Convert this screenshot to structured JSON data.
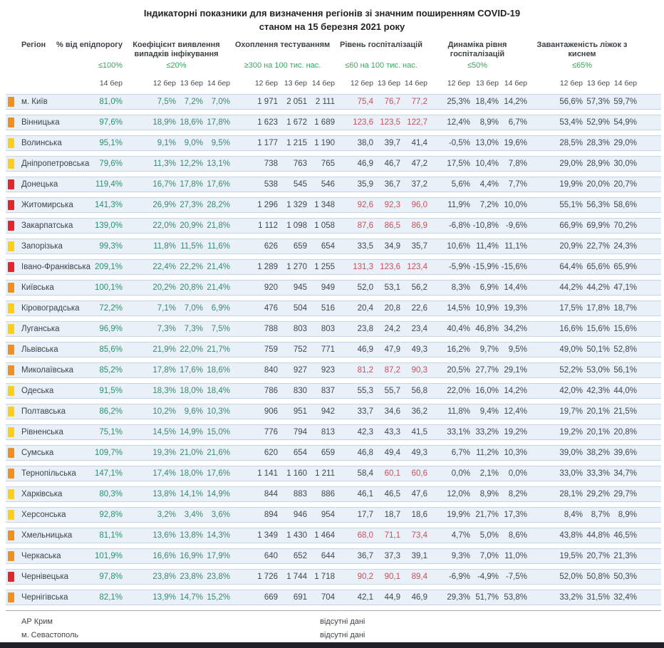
{
  "title": {
    "line1": "Індикаторні показники для визначення регіонів зі значним поширенням COVID-19",
    "line2": "станом на 15 березня 2021 року"
  },
  "columns": {
    "region": "Регіон",
    "groups": [
      {
        "id": "epid",
        "label": "% від епідпорогу",
        "threshold": "≤100%",
        "dates": [
          "14 бер"
        ]
      },
      {
        "id": "coef",
        "label": "Коефіцієнт виявлення випадків інфікування",
        "threshold": "≤20%",
        "dates": [
          "12 бер",
          "13 бер",
          "14 бер"
        ]
      },
      {
        "id": "test",
        "label": "Охоплення тестуванням",
        "threshold": "≥300 на 100 тис. нас.",
        "dates": [
          "12 бер",
          "13 бер",
          "14 бер"
        ]
      },
      {
        "id": "hosp",
        "label": "Рівень госпіталізацій",
        "threshold": "≤60 на 100 тис. нас.",
        "dates": [
          "12 бер",
          "13 бер",
          "14 бер"
        ]
      },
      {
        "id": "dyn",
        "label": "Динаміка рівня госпіталізацій",
        "threshold": "≤50%",
        "dates": [
          "12 бер",
          "13 бер",
          "14 бер"
        ]
      },
      {
        "id": "beds",
        "label": "Завантаженість ліжок з киснем",
        "threshold": "≤65%",
        "dates": [
          "12 бер",
          "13 бер",
          "14 бер"
        ]
      }
    ]
  },
  "rows": [
    {
      "region": "м. Київ",
      "marker": "orange",
      "epid": "81,0%",
      "coef": [
        "7,5%",
        "7,2%",
        "7,0%"
      ],
      "test": [
        "1 971",
        "2 051",
        "2 111"
      ],
      "hosp": [
        "75,4",
        "76,7",
        "77,2"
      ],
      "hosp_alert": [
        true,
        true,
        true
      ],
      "dyn": [
        "25,3%",
        "18,4%",
        "14,2%"
      ],
      "beds": [
        "56,6%",
        "57,3%",
        "59,7%"
      ]
    },
    {
      "region": "Вінницька",
      "marker": "orange",
      "epid": "97,6%",
      "coef": [
        "18,9%",
        "18,6%",
        "17,8%"
      ],
      "test": [
        "1 623",
        "1 672",
        "1 689"
      ],
      "hosp": [
        "123,6",
        "123,5",
        "122,7"
      ],
      "hosp_alert": [
        true,
        true,
        true
      ],
      "dyn": [
        "12,4%",
        "8,9%",
        "6,7%"
      ],
      "beds": [
        "53,4%",
        "52,9%",
        "54,9%"
      ]
    },
    {
      "region": "Волинська",
      "marker": "yellow",
      "epid": "95,1%",
      "coef": [
        "9,1%",
        "9,0%",
        "9,5%"
      ],
      "test": [
        "1 177",
        "1 215",
        "1 190"
      ],
      "hosp": [
        "38,0",
        "39,7",
        "41,4"
      ],
      "hosp_alert": [
        false,
        false,
        false
      ],
      "dyn": [
        "-0,5%",
        "13,0%",
        "19,6%"
      ],
      "beds": [
        "28,5%",
        "28,3%",
        "29,0%"
      ]
    },
    {
      "region": "Дніпропетровська",
      "marker": "yellow",
      "epid": "79,6%",
      "coef": [
        "11,3%",
        "12,2%",
        "13,1%"
      ],
      "test": [
        "738",
        "763",
        "765"
      ],
      "hosp": [
        "46,9",
        "46,7",
        "47,2"
      ],
      "hosp_alert": [
        false,
        false,
        false
      ],
      "dyn": [
        "17,5%",
        "10,4%",
        "7,8%"
      ],
      "beds": [
        "29,0%",
        "28,9%",
        "30,0%"
      ]
    },
    {
      "region": "Донецька",
      "marker": "red",
      "epid": "119,4%",
      "coef": [
        "16,7%",
        "17,8%",
        "17,6%"
      ],
      "test": [
        "538",
        "545",
        "546"
      ],
      "hosp": [
        "35,9",
        "36,7",
        "37,2"
      ],
      "hosp_alert": [
        false,
        false,
        false
      ],
      "dyn": [
        "5,6%",
        "4,4%",
        "7,7%"
      ],
      "beds": [
        "19,9%",
        "20,0%",
        "20,7%"
      ]
    },
    {
      "region": "Житомирська",
      "marker": "red",
      "epid": "141,3%",
      "coef": [
        "26,9%",
        "27,3%",
        "28,2%"
      ],
      "test": [
        "1 296",
        "1 329",
        "1 348"
      ],
      "hosp": [
        "92,6",
        "92,3",
        "96,0"
      ],
      "hosp_alert": [
        true,
        true,
        true
      ],
      "dyn": [
        "11,9%",
        "7,2%",
        "10,0%"
      ],
      "beds": [
        "55,1%",
        "56,3%",
        "58,6%"
      ]
    },
    {
      "region": "Закарпатська",
      "marker": "red",
      "epid": "139,0%",
      "coef": [
        "22,0%",
        "20,9%",
        "21,8%"
      ],
      "test": [
        "1 112",
        "1 098",
        "1 058"
      ],
      "hosp": [
        "87,6",
        "86,5",
        "86,9"
      ],
      "hosp_alert": [
        true,
        true,
        true
      ],
      "dyn": [
        "-6,8%",
        "-10,8%",
        "-9,6%"
      ],
      "beds": [
        "66,9%",
        "69,9%",
        "70,2%"
      ]
    },
    {
      "region": "Запорізька",
      "marker": "yellow",
      "epid": "99,3%",
      "coef": [
        "11,8%",
        "11,5%",
        "11,6%"
      ],
      "test": [
        "626",
        "659",
        "654"
      ],
      "hosp": [
        "33,5",
        "34,9",
        "35,7"
      ],
      "hosp_alert": [
        false,
        false,
        false
      ],
      "dyn": [
        "10,6%",
        "11,4%",
        "11,1%"
      ],
      "beds": [
        "20,9%",
        "22,7%",
        "24,3%"
      ]
    },
    {
      "region": "Івано-Франківська",
      "marker": "red",
      "epid": "209,1%",
      "coef": [
        "22,4%",
        "22,2%",
        "21,4%"
      ],
      "test": [
        "1 289",
        "1 270",
        "1 255"
      ],
      "hosp": [
        "131,3",
        "123,6",
        "123,4"
      ],
      "hosp_alert": [
        true,
        true,
        true
      ],
      "dyn": [
        "-5,9%",
        "-15,9%",
        "-15,6%"
      ],
      "beds": [
        "64,4%",
        "65,6%",
        "65,9%"
      ]
    },
    {
      "region": "Київська",
      "marker": "orange",
      "epid": "100,1%",
      "coef": [
        "20,2%",
        "20,8%",
        "21,4%"
      ],
      "test": [
        "920",
        "945",
        "949"
      ],
      "hosp": [
        "52,0",
        "53,1",
        "56,2"
      ],
      "hosp_alert": [
        false,
        false,
        false
      ],
      "dyn": [
        "8,3%",
        "6,9%",
        "14,4%"
      ],
      "beds": [
        "44,2%",
        "44,2%",
        "47,1%"
      ]
    },
    {
      "region": "Кіровоградська",
      "marker": "yellow",
      "epid": "72,2%",
      "coef": [
        "7,1%",
        "7,0%",
        "6,9%"
      ],
      "test": [
        "476",
        "504",
        "516"
      ],
      "hosp": [
        "20,4",
        "20,8",
        "22,6"
      ],
      "hosp_alert": [
        false,
        false,
        false
      ],
      "dyn": [
        "14,5%",
        "10,9%",
        "19,3%"
      ],
      "beds": [
        "17,5%",
        "17,8%",
        "18,7%"
      ]
    },
    {
      "region": "Луганська",
      "marker": "yellow",
      "epid": "96,9%",
      "coef": [
        "7,3%",
        "7,3%",
        "7,5%"
      ],
      "test": [
        "788",
        "803",
        "803"
      ],
      "hosp": [
        "23,8",
        "24,2",
        "23,4"
      ],
      "hosp_alert": [
        false,
        false,
        false
      ],
      "dyn": [
        "40,4%",
        "46,8%",
        "34,2%"
      ],
      "beds": [
        "16,6%",
        "15,6%",
        "15,6%"
      ]
    },
    {
      "region": "Львівська",
      "marker": "orange",
      "epid": "85,6%",
      "coef": [
        "21,9%",
        "22,0%",
        "21,7%"
      ],
      "test": [
        "759",
        "752",
        "771"
      ],
      "hosp": [
        "46,9",
        "47,9",
        "49,3"
      ],
      "hosp_alert": [
        false,
        false,
        false
      ],
      "dyn": [
        "16,2%",
        "9,7%",
        "9,5%"
      ],
      "beds": [
        "49,0%",
        "50,1%",
        "52,8%"
      ]
    },
    {
      "region": "Миколаївська",
      "marker": "orange",
      "epid": "85,2%",
      "coef": [
        "17,8%",
        "17,6%",
        "18,6%"
      ],
      "test": [
        "840",
        "927",
        "923"
      ],
      "hosp": [
        "81,2",
        "87,2",
        "90,3"
      ],
      "hosp_alert": [
        true,
        true,
        true
      ],
      "dyn": [
        "20,5%",
        "27,7%",
        "29,1%"
      ],
      "beds": [
        "52,2%",
        "53,0%",
        "56,1%"
      ]
    },
    {
      "region": "Одеська",
      "marker": "yellow",
      "epid": "91,5%",
      "coef": [
        "18,3%",
        "18,0%",
        "18,4%"
      ],
      "test": [
        "786",
        "830",
        "837"
      ],
      "hosp": [
        "55,3",
        "55,7",
        "56,8"
      ],
      "hosp_alert": [
        false,
        false,
        false
      ],
      "dyn": [
        "22,0%",
        "16,0%",
        "14,2%"
      ],
      "beds": [
        "42,0%",
        "42,3%",
        "44,0%"
      ]
    },
    {
      "region": "Полтавська",
      "marker": "yellow",
      "epid": "86,2%",
      "coef": [
        "10,2%",
        "9,6%",
        "10,3%"
      ],
      "test": [
        "906",
        "951",
        "942"
      ],
      "hosp": [
        "33,7",
        "34,6",
        "36,2"
      ],
      "hosp_alert": [
        false,
        false,
        false
      ],
      "dyn": [
        "11,8%",
        "9,4%",
        "12,4%"
      ],
      "beds": [
        "19,7%",
        "20,1%",
        "21,5%"
      ]
    },
    {
      "region": "Рівненська",
      "marker": "yellow",
      "epid": "75,1%",
      "coef": [
        "14,5%",
        "14,9%",
        "15,0%"
      ],
      "test": [
        "776",
        "794",
        "813"
      ],
      "hosp": [
        "42,3",
        "43,3",
        "41,5"
      ],
      "hosp_alert": [
        false,
        false,
        false
      ],
      "dyn": [
        "33,1%",
        "33,2%",
        "19,2%"
      ],
      "beds": [
        "19,2%",
        "20,1%",
        "20,8%"
      ]
    },
    {
      "region": "Сумська",
      "marker": "orange",
      "epid": "109,7%",
      "coef": [
        "19,3%",
        "21,0%",
        "21,6%"
      ],
      "test": [
        "620",
        "654",
        "659"
      ],
      "hosp": [
        "46,8",
        "49,4",
        "49,3"
      ],
      "hosp_alert": [
        false,
        false,
        false
      ],
      "dyn": [
        "6,7%",
        "11,2%",
        "10,3%"
      ],
      "beds": [
        "39,0%",
        "38,2%",
        "39,6%"
      ]
    },
    {
      "region": "Тернопільська",
      "marker": "orange",
      "epid": "147,1%",
      "coef": [
        "17,4%",
        "18,0%",
        "17,6%"
      ],
      "test": [
        "1 141",
        "1 160",
        "1 211"
      ],
      "hosp": [
        "58,4",
        "60,1",
        "60,6"
      ],
      "hosp_alert": [
        false,
        true,
        true
      ],
      "dyn": [
        "0,0%",
        "2,1%",
        "0,0%"
      ],
      "beds": [
        "33,0%",
        "33,3%",
        "34,7%"
      ]
    },
    {
      "region": "Харківська",
      "marker": "yellow",
      "epid": "80,3%",
      "coef": [
        "13,8%",
        "14,1%",
        "14,9%"
      ],
      "test": [
        "844",
        "883",
        "886"
      ],
      "hosp": [
        "46,1",
        "46,5",
        "47,6"
      ],
      "hosp_alert": [
        false,
        false,
        false
      ],
      "dyn": [
        "12,0%",
        "8,9%",
        "8,2%"
      ],
      "beds": [
        "28,1%",
        "29,2%",
        "29,7%"
      ]
    },
    {
      "region": "Херсонська",
      "marker": "yellow",
      "epid": "92,8%",
      "coef": [
        "3,2%",
        "3,4%",
        "3,6%"
      ],
      "test": [
        "894",
        "946",
        "954"
      ],
      "hosp": [
        "17,7",
        "18,7",
        "18,6"
      ],
      "hosp_alert": [
        false,
        false,
        false
      ],
      "dyn": [
        "19,9%",
        "21,7%",
        "17,3%"
      ],
      "beds": [
        "8,4%",
        "8,7%",
        "8,9%"
      ]
    },
    {
      "region": "Хмельницька",
      "marker": "orange",
      "epid": "81,1%",
      "coef": [
        "13,6%",
        "13,8%",
        "14,3%"
      ],
      "test": [
        "1 349",
        "1 430",
        "1 464"
      ],
      "hosp": [
        "68,0",
        "71,1",
        "73,4"
      ],
      "hosp_alert": [
        true,
        true,
        true
      ],
      "dyn": [
        "4,7%",
        "5,0%",
        "8,6%"
      ],
      "beds": [
        "43,8%",
        "44,8%",
        "46,5%"
      ]
    },
    {
      "region": "Черкаська",
      "marker": "orange",
      "epid": "101,9%",
      "coef": [
        "16,6%",
        "16,9%",
        "17,9%"
      ],
      "test": [
        "640",
        "652",
        "644"
      ],
      "hosp": [
        "36,7",
        "37,3",
        "39,1"
      ],
      "hosp_alert": [
        false,
        false,
        false
      ],
      "dyn": [
        "9,3%",
        "7,0%",
        "11,0%"
      ],
      "beds": [
        "19,5%",
        "20,7%",
        "21,3%"
      ]
    },
    {
      "region": "Чернівецька",
      "marker": "red",
      "epid": "97,8%",
      "coef": [
        "23,8%",
        "23,8%",
        "23,8%"
      ],
      "test": [
        "1 726",
        "1 744",
        "1 718"
      ],
      "hosp": [
        "90,2",
        "90,1",
        "89,4"
      ],
      "hosp_alert": [
        true,
        true,
        true
      ],
      "dyn": [
        "-6,9%",
        "-4,9%",
        "-7,5%"
      ],
      "beds": [
        "52,0%",
        "50,8%",
        "50,3%"
      ]
    },
    {
      "region": "Чернігівська",
      "marker": "orange",
      "epid": "82,1%",
      "coef": [
        "13,9%",
        "14,7%",
        "15,2%"
      ],
      "test": [
        "669",
        "691",
        "704"
      ],
      "hosp": [
        "42,1",
        "44,9",
        "46,9"
      ],
      "hosp_alert": [
        false,
        false,
        false
      ],
      "dyn": [
        "29,3%",
        "51,7%",
        "53,8%"
      ],
      "beds": [
        "33,2%",
        "31,5%",
        "32,4%"
      ]
    }
  ],
  "footer": {
    "rows": [
      {
        "region": "АР Крим",
        "note": "відсутні дані"
      },
      {
        "region": "м. Севастополь",
        "note": "відсутні дані"
      }
    ]
  },
  "colors": {
    "orange": "#f3901d",
    "yellow": "#fdd017",
    "red": "#e5252d",
    "row_bg": "#e9f0f8",
    "green": "#2f8e6e",
    "threshold_green": "#3ba55d",
    "value_dark": "#40474e",
    "alert_red": "#c4515c",
    "bottom_bar": "#1b202b"
  }
}
